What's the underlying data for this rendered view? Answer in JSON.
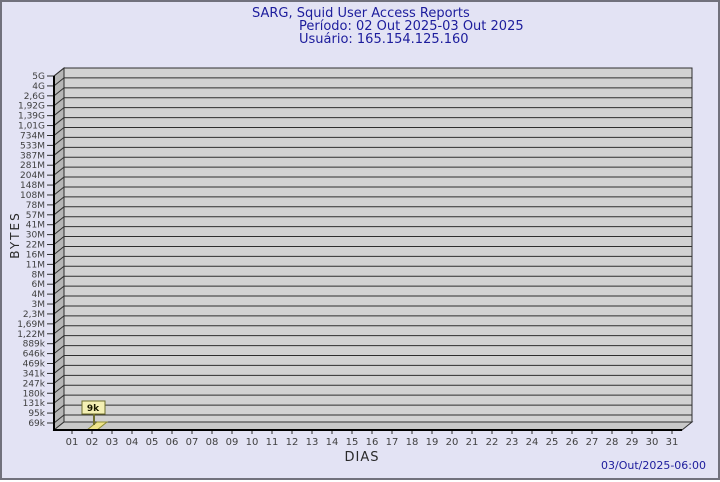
{
  "window": {
    "background": "#e3e3f4",
    "border_color": "#71717c"
  },
  "header": {
    "title": "SARG, Squid User Access Reports",
    "period_line": "Período: 02 Out 2025-03 Out 2025",
    "user_line": "Usuário: 165.154.125.160",
    "title_color": "#1c1c9c"
  },
  "footer": {
    "timestamp": "03/Out/2025-06:00"
  },
  "chart_data": {
    "type": "bar",
    "title": "SARG, Squid User Access Reports",
    "subtitle": "Período: 02 Out 2025-03 Out 2025 / Usuário: 165.154.125.160",
    "xlabel": "DIAS",
    "ylabel": "BYTES",
    "y_scale": "log",
    "ylim": [
      "69k",
      "5G"
    ],
    "grid": true,
    "style": "3d-bar",
    "y_tick_labels": [
      "5G",
      "4G",
      "2,6G",
      "1,92G",
      "1,39G",
      "1,01G",
      "734M",
      "533M",
      "387M",
      "281M",
      "204M",
      "148M",
      "108M",
      "78M",
      "57M",
      "41M",
      "30M",
      "22M",
      "16M",
      "11M",
      "8M",
      "6M",
      "4M",
      "3M",
      "2,3M",
      "1,69M",
      "1,22M",
      "889k",
      "646k",
      "469k",
      "341k",
      "247k",
      "180k",
      "131k",
      "95k",
      "69k"
    ],
    "x_tick_labels": [
      "01",
      "02",
      "03",
      "04",
      "05",
      "06",
      "07",
      "08",
      "09",
      "10",
      "11",
      "12",
      "13",
      "14",
      "15",
      "16",
      "17",
      "18",
      "19",
      "20",
      "21",
      "22",
      "23",
      "24",
      "25",
      "26",
      "27",
      "28",
      "29",
      "30",
      "31"
    ],
    "bars": [
      {
        "day": "02",
        "value_label": "9k",
        "approx_bytes": 9000
      }
    ],
    "colors": {
      "plot_fill": "#d2d2d2",
      "wall_fill": "#b6b6b6",
      "floor_fill": "#c8c8c8",
      "grid_line": "#2f2f2f",
      "axis_line": "#000000",
      "tick_text": "#3f3f3f",
      "bar_fill": "#efe48b",
      "bar_border": "#8a8a33",
      "tooltip_fill": "#f4f0b4",
      "tooltip_border": "#6f6f2e",
      "tooltip_text": "#1a1a00"
    }
  }
}
